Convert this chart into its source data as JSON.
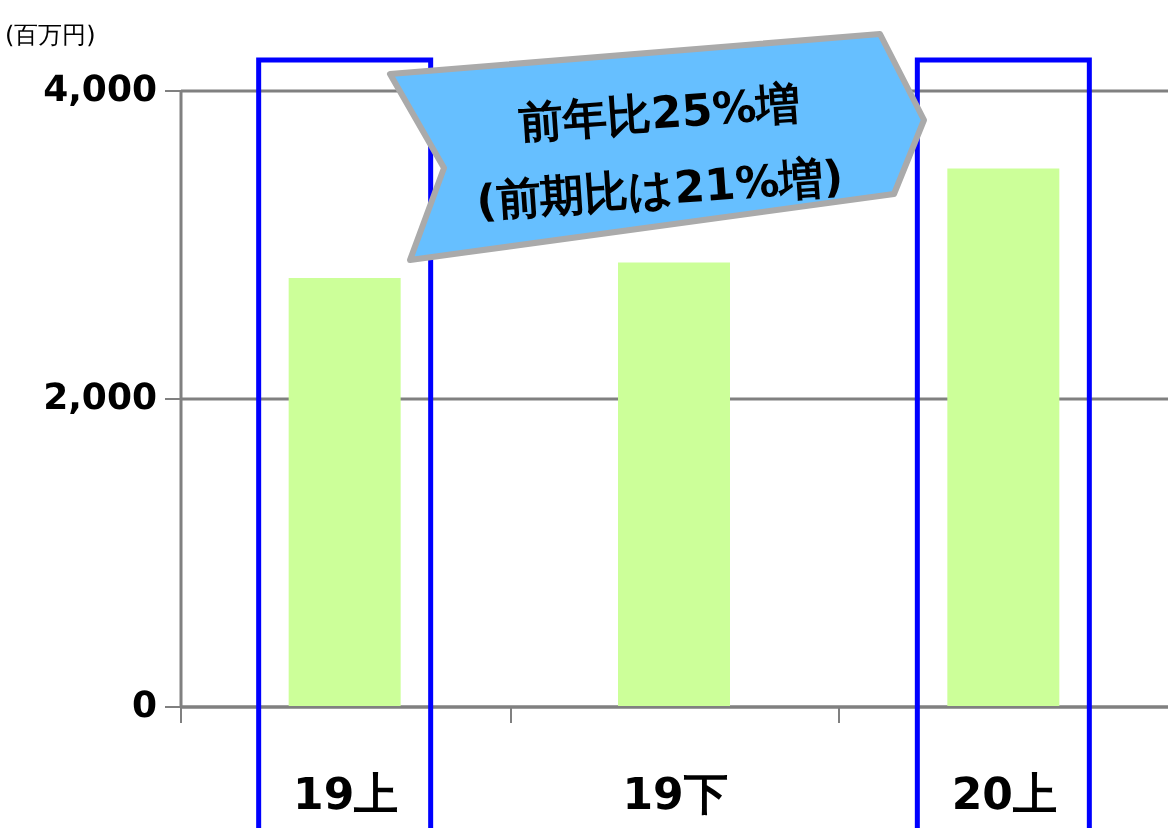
{
  "chart_data": {
    "type": "bar",
    "ylabel": "(百万円)",
    "categories": [
      "19上",
      "19下",
      "20上"
    ],
    "values": [
      2780,
      2880,
      3490
    ],
    "color": "#ccff99",
    "ylim": [
      0,
      4000
    ],
    "yticks": [
      0,
      {
        "value": 2000,
        "label": "2,000"
      },
      {
        "value": 4000,
        "label": "4,000"
      }
    ],
    "grid": "y",
    "annotations": [
      "前年比25%増\n(前期比は21%増)"
    ]
  }
}
